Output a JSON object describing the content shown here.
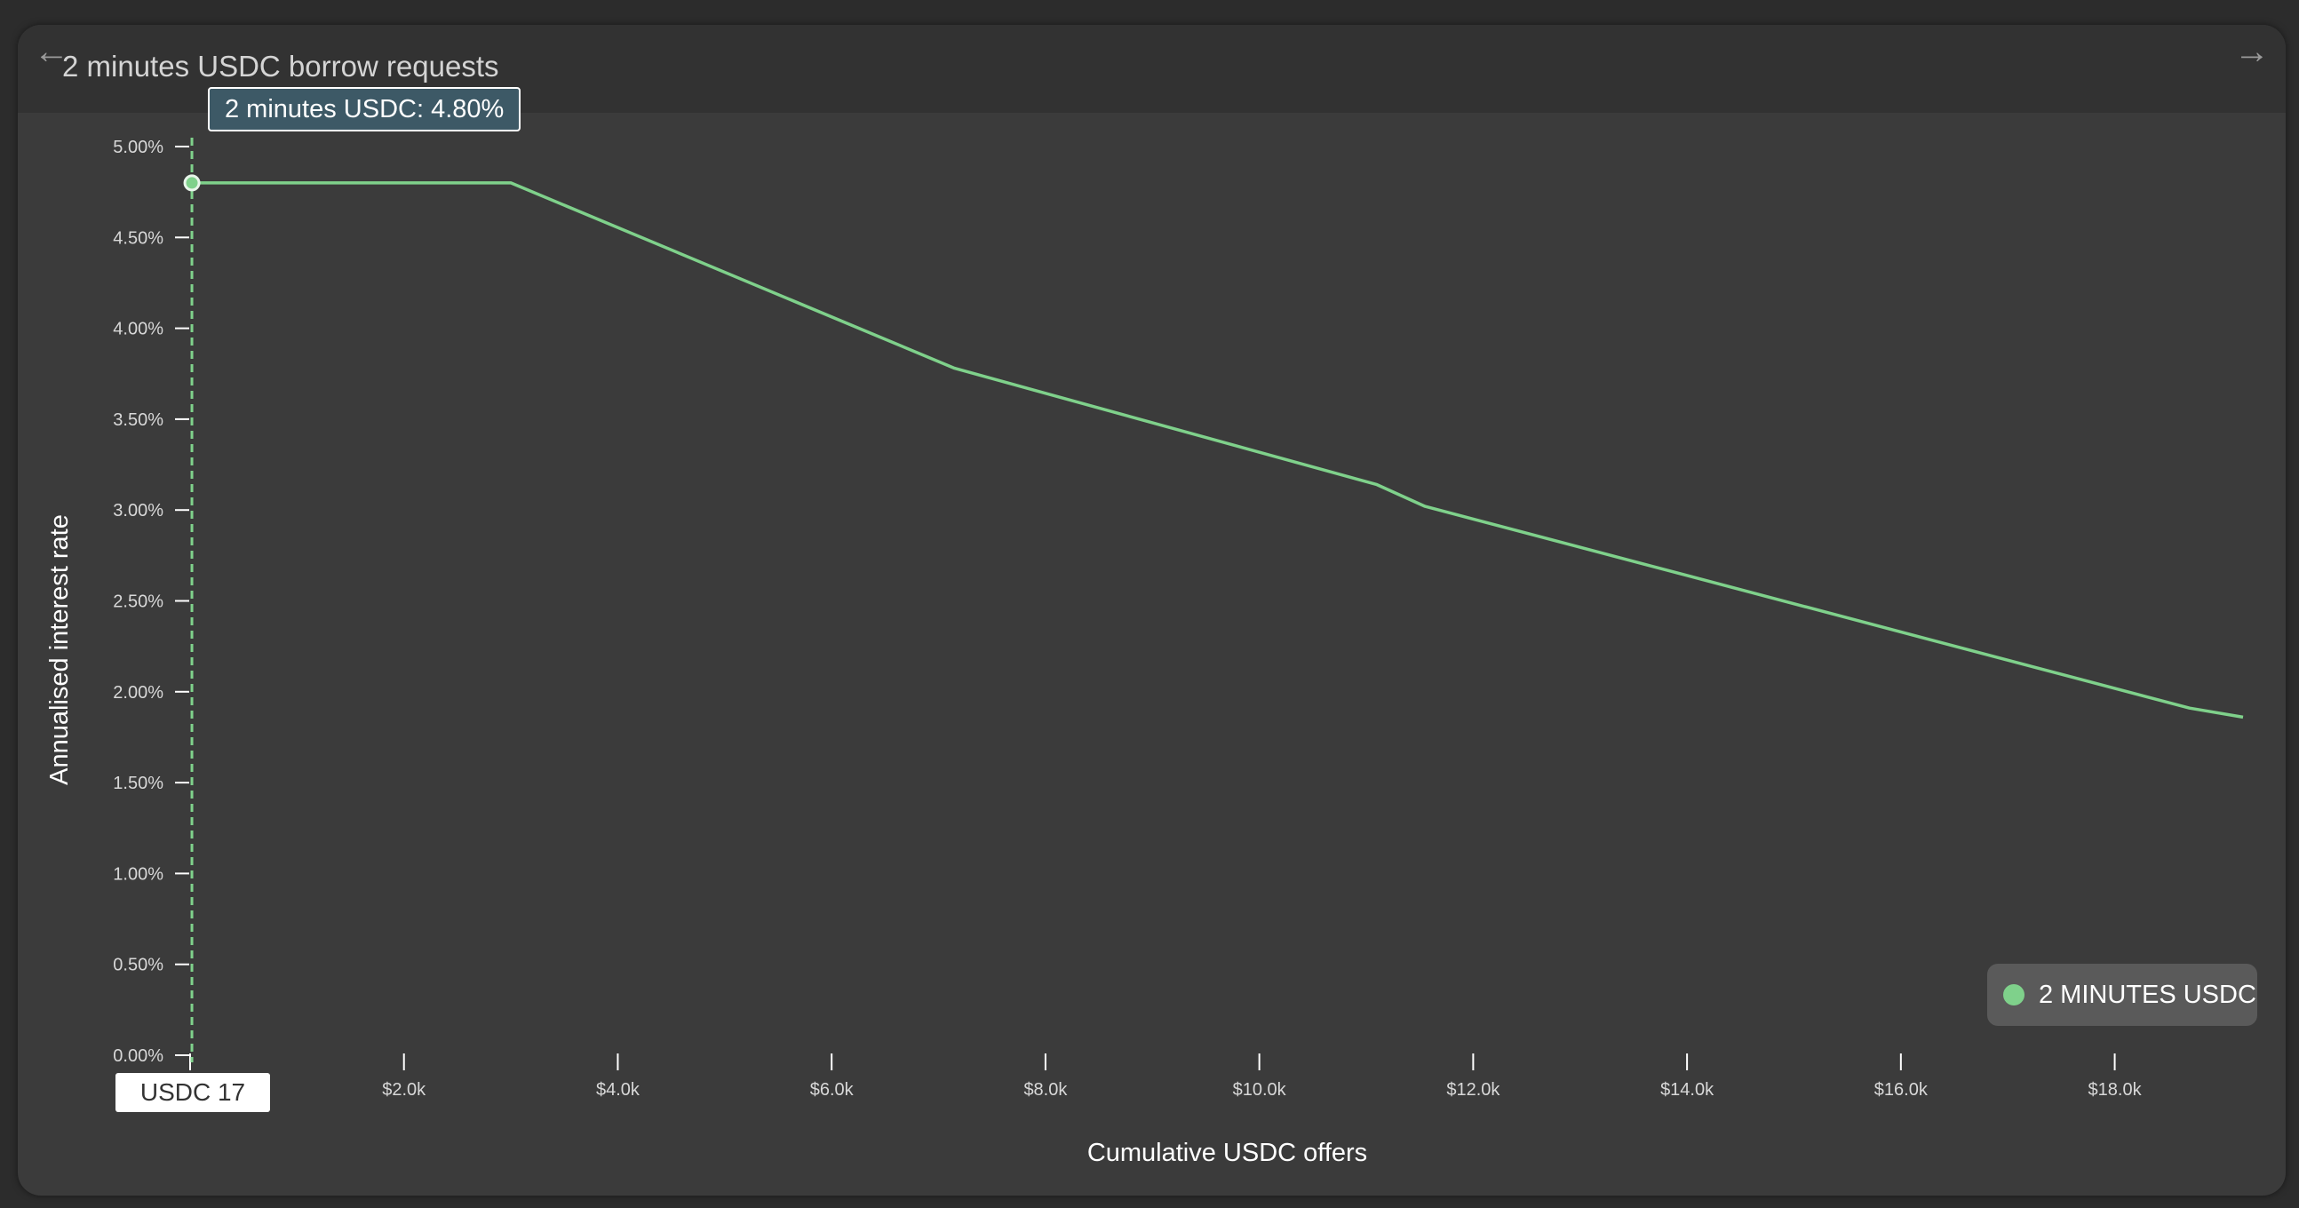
{
  "header": {
    "title": "2 minutes USDC borrow requests",
    "back_icon": "arrow-left-icon",
    "forward_icon": "arrow-right-icon"
  },
  "tooltip": {
    "text": "2 minutes USDC: 4.80%"
  },
  "cursor": {
    "x_label": "USDC 17",
    "x": 17,
    "y": 4.8
  },
  "legend": {
    "label": "2 MINUTES USDC",
    "color": "#7fd18b"
  },
  "colors": {
    "series": "#7fd18b",
    "axis": "#ffffff",
    "background": "#3b3b3b"
  },
  "chart_data": {
    "type": "line",
    "xlabel": "Cumulative USDC offers",
    "ylabel": "Annualised interest rate",
    "xlim": [
      0,
      19200
    ],
    "ylim": [
      0,
      5
    ],
    "xticks": [
      0,
      2000,
      4000,
      6000,
      8000,
      10000,
      12000,
      14000,
      16000,
      18000
    ],
    "xtick_labels": [
      "",
      "$2.0k",
      "$4.0k",
      "$6.0k",
      "$8.0k",
      "$10.0k",
      "$12.0k",
      "$14.0k",
      "$16.0k",
      "$18.0k"
    ],
    "yticks": [
      0,
      0.5,
      1,
      1.5,
      2,
      2.5,
      3,
      3.5,
      4,
      4.5,
      5
    ],
    "ytick_labels": [
      "0.00%",
      "0.50%",
      "1.00%",
      "1.50%",
      "2.00%",
      "2.50%",
      "3.00%",
      "3.50%",
      "4.00%",
      "4.50%",
      "5.00%"
    ],
    "grid": false,
    "legend_position": "bottom-right",
    "series": [
      {
        "name": "2 MINUTES USDC",
        "color": "#7fd18b",
        "points": [
          [
            17,
            4.8
          ],
          [
            3000,
            4.8
          ],
          [
            7150,
            3.78
          ],
          [
            11100,
            3.14
          ],
          [
            11550,
            3.02
          ],
          [
            18700,
            1.91
          ],
          [
            19200,
            1.86
          ]
        ]
      }
    ]
  }
}
